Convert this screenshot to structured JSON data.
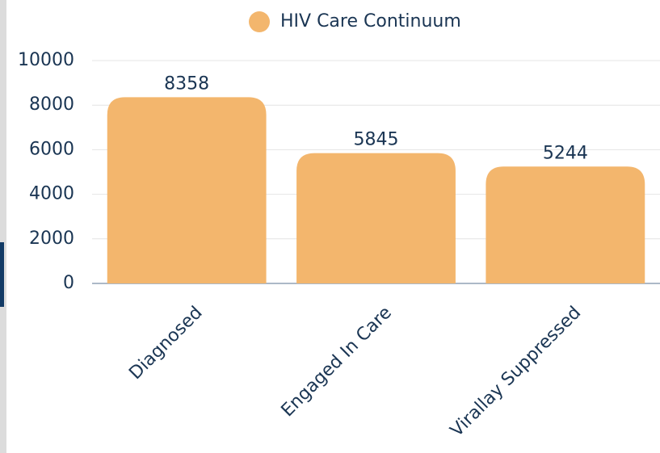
{
  "chart_data": {
    "type": "bar",
    "categories": [
      "Diagnosed",
      "Engaged In Care",
      "Virallay Suppressed"
    ],
    "series": [
      {
        "name": "HIV Care Continuum",
        "color": "#f3b66d",
        "values": [
          8358,
          5845,
          5244
        ]
      }
    ],
    "ylim": [
      0,
      10000
    ],
    "yticks": [
      0,
      2000,
      4000,
      6000,
      8000,
      10000
    ],
    "grid": true,
    "legend": "top"
  }
}
